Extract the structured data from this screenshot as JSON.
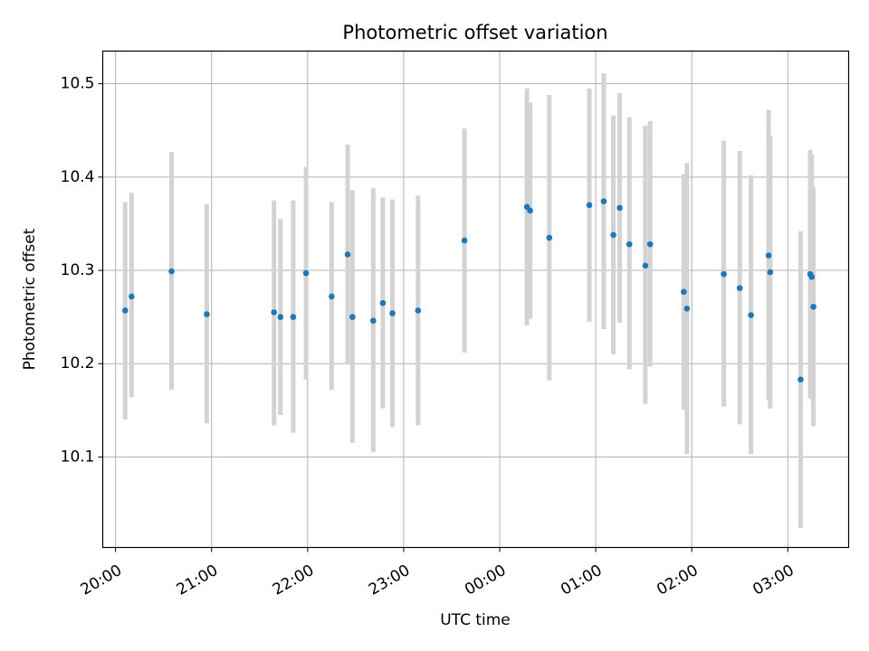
{
  "chart_data": {
    "type": "scatter",
    "title": "Photometric offset variation",
    "xlabel": "UTC time",
    "ylabel": "Photometric offset",
    "x_unit": "UTC time (HH:MM)",
    "xlim": [
      "19:52",
      "03:38"
    ],
    "ylim": [
      10.003,
      10.535
    ],
    "x_ticks": [
      "20:00",
      "21:00",
      "22:00",
      "23:00",
      "00:00",
      "01:00",
      "02:00",
      "03:00"
    ],
    "y_ticks": [
      10.1,
      10.2,
      10.3,
      10.4,
      10.5
    ],
    "y_tick_labels": [
      "10.1",
      "10.2",
      "10.3",
      "10.4",
      "10.5"
    ],
    "grid": true,
    "colors": {
      "points": "#1f77b4",
      "error_bars": "#d3d3d3",
      "grid": "#b0b0b0"
    },
    "points": [
      {
        "x": "20:06",
        "y": 10.257,
        "err_lo": 10.14,
        "err_hi": 10.373
      },
      {
        "x": "20:10",
        "y": 10.272,
        "err_lo": 10.164,
        "err_hi": 10.383
      },
      {
        "x": "20:35",
        "y": 10.299,
        "err_lo": 10.172,
        "err_hi": 10.427
      },
      {
        "x": "20:57",
        "y": 10.253,
        "err_lo": 10.136,
        "err_hi": 10.371
      },
      {
        "x": "21:39",
        "y": 10.255,
        "err_lo": 10.134,
        "err_hi": 10.375
      },
      {
        "x": "21:43",
        "y": 10.25,
        "err_lo": 10.145,
        "err_hi": 10.355
      },
      {
        "x": "21:51",
        "y": 10.25,
        "err_lo": 10.126,
        "err_hi": 10.375
      },
      {
        "x": "21:59",
        "y": 10.297,
        "err_lo": 10.183,
        "err_hi": 10.411
      },
      {
        "x": "22:15",
        "y": 10.272,
        "err_lo": 10.172,
        "err_hi": 10.373
      },
      {
        "x": "22:25",
        "y": 10.317,
        "err_lo": 10.199,
        "err_hi": 10.435
      },
      {
        "x": "22:28",
        "y": 10.25,
        "err_lo": 10.115,
        "err_hi": 10.386
      },
      {
        "x": "22:41",
        "y": 10.246,
        "err_lo": 10.105,
        "err_hi": 10.388
      },
      {
        "x": "22:47",
        "y": 10.265,
        "err_lo": 10.152,
        "err_hi": 10.378
      },
      {
        "x": "22:53",
        "y": 10.254,
        "err_lo": 10.132,
        "err_hi": 10.376
      },
      {
        "x": "23:09",
        "y": 10.257,
        "err_lo": 10.134,
        "err_hi": 10.38
      },
      {
        "x": "23:38",
        "y": 10.332,
        "err_lo": 10.212,
        "err_hi": 10.452
      },
      {
        "x": "00:17",
        "y": 10.368,
        "err_lo": 10.241,
        "err_hi": 10.495
      },
      {
        "x": "00:19",
        "y": 10.364,
        "err_lo": 10.248,
        "err_hi": 10.48
      },
      {
        "x": "00:31",
        "y": 10.335,
        "err_lo": 10.182,
        "err_hi": 10.488
      },
      {
        "x": "00:56",
        "y": 10.37,
        "err_lo": 10.245,
        "err_hi": 10.495
      },
      {
        "x": "01:05",
        "y": 10.374,
        "err_lo": 10.237,
        "err_hi": 10.511
      },
      {
        "x": "01:11",
        "y": 10.338,
        "err_lo": 10.21,
        "err_hi": 10.466
      },
      {
        "x": "01:15",
        "y": 10.367,
        "err_lo": 10.244,
        "err_hi": 10.49
      },
      {
        "x": "01:21",
        "y": 10.328,
        "err_lo": 10.194,
        "err_hi": 10.464
      },
      {
        "x": "01:31",
        "y": 10.305,
        "err_lo": 10.157,
        "err_hi": 10.455
      },
      {
        "x": "01:34",
        "y": 10.328,
        "err_lo": 10.197,
        "err_hi": 10.46
      },
      {
        "x": "01:55",
        "y": 10.277,
        "err_lo": 10.151,
        "err_hi": 10.403
      },
      {
        "x": "01:57",
        "y": 10.259,
        "err_lo": 10.103,
        "err_hi": 10.415
      },
      {
        "x": "02:20",
        "y": 10.296,
        "err_lo": 10.154,
        "err_hi": 10.439
      },
      {
        "x": "02:30",
        "y": 10.281,
        "err_lo": 10.135,
        "err_hi": 10.428
      },
      {
        "x": "02:37",
        "y": 10.252,
        "err_lo": 10.103,
        "err_hi": 10.402
      },
      {
        "x": "02:48",
        "y": 10.316,
        "err_lo": 10.161,
        "err_hi": 10.472
      },
      {
        "x": "02:49",
        "y": 10.298,
        "err_lo": 10.152,
        "err_hi": 10.444
      },
      {
        "x": "03:08",
        "y": 10.183,
        "err_lo": 10.024,
        "err_hi": 10.342
      },
      {
        "x": "03:14",
        "y": 10.296,
        "err_lo": 10.163,
        "err_hi": 10.429
      },
      {
        "x": "03:15",
        "y": 10.293,
        "err_lo": 10.162,
        "err_hi": 10.424
      },
      {
        "x": "03:16",
        "y": 10.261,
        "err_lo": 10.133,
        "err_hi": 10.389
      }
    ]
  }
}
